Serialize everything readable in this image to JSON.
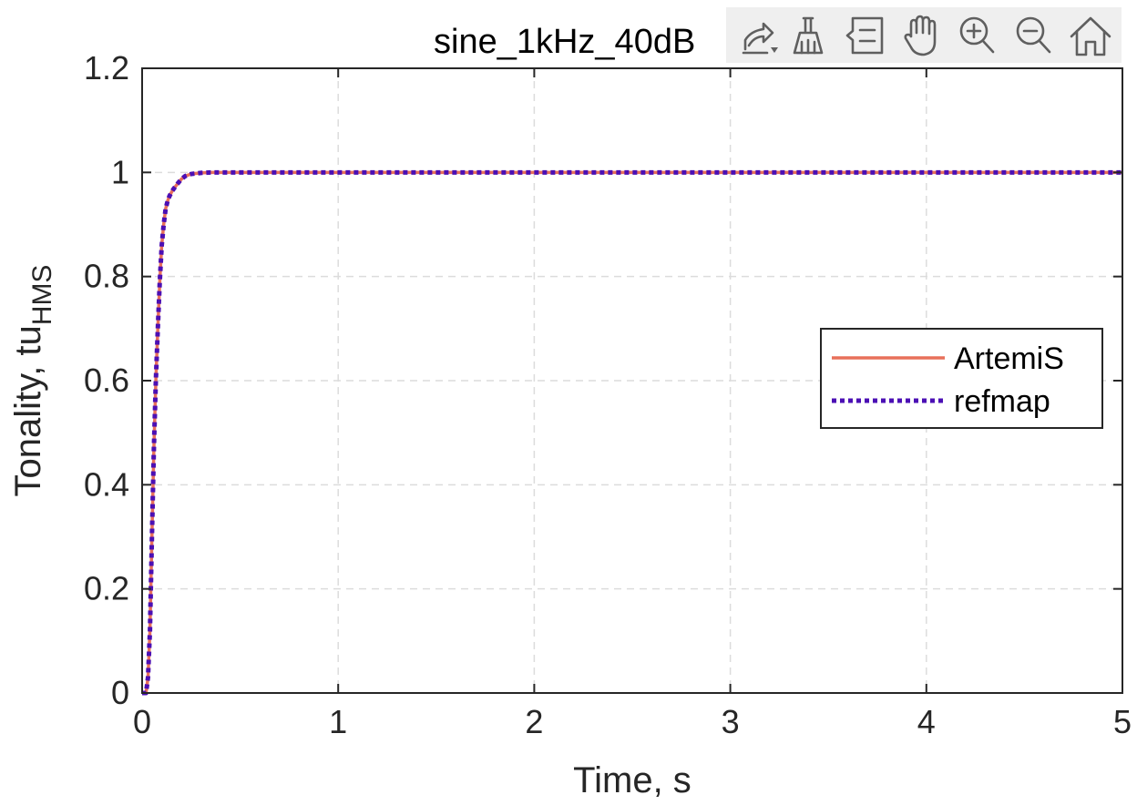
{
  "chart_data": {
    "type": "line",
    "title": "sine_1kHz_40dB",
    "xlabel": "Time, s",
    "ylabel_main": "Tonality, tu",
    "ylabel_subscript": "HMS",
    "xlim": [
      0,
      5
    ],
    "ylim": [
      0,
      1.2
    ],
    "xticks": [
      0,
      1,
      2,
      3,
      4,
      5
    ],
    "xtick_labels": [
      "0",
      "1",
      "2",
      "3",
      "4",
      "5"
    ],
    "yticks": [
      0,
      0.2,
      0.4,
      0.6,
      0.8,
      1,
      1.2
    ],
    "ytick_labels": [
      "0",
      "0.2",
      "0.4",
      "0.6",
      "0.8",
      "1",
      "1.2"
    ],
    "grid": true,
    "legend_position": "right",
    "series": [
      {
        "name": "ArtemiS",
        "color": "#E8705A",
        "style": "solid",
        "x": [
          0,
          0.02,
          0.03,
          0.04,
          0.05,
          0.06,
          0.07,
          0.08,
          0.09,
          0.1,
          0.11,
          0.12,
          0.13,
          0.14,
          0.15,
          0.16,
          0.18,
          0.2,
          0.22,
          0.25,
          0.3,
          0.35,
          0.5,
          1,
          2,
          3,
          4,
          5
        ],
        "y": [
          0,
          0.0,
          0.03,
          0.12,
          0.3,
          0.47,
          0.6,
          0.7,
          0.79,
          0.86,
          0.9,
          0.93,
          0.945,
          0.955,
          0.962,
          0.968,
          0.978,
          0.987,
          0.993,
          0.997,
          0.999,
          1.0,
          1.0,
          1.0,
          1.0,
          1.0,
          1.0,
          1.0
        ]
      },
      {
        "name": "refmap",
        "color": "#4B0FB4",
        "style": "dotted",
        "x": [
          0,
          0.02,
          0.03,
          0.04,
          0.05,
          0.06,
          0.07,
          0.08,
          0.09,
          0.1,
          0.11,
          0.12,
          0.13,
          0.14,
          0.15,
          0.16,
          0.18,
          0.2,
          0.22,
          0.25,
          0.3,
          0.35,
          0.5,
          1,
          2,
          3,
          4,
          5
        ],
        "y": [
          0,
          0.0,
          0.03,
          0.12,
          0.3,
          0.47,
          0.6,
          0.7,
          0.79,
          0.86,
          0.9,
          0.93,
          0.945,
          0.955,
          0.962,
          0.968,
          0.978,
          0.987,
          0.993,
          0.997,
          0.999,
          1.0,
          1.0,
          1.0,
          1.0,
          1.0,
          1.0,
          1.0
        ]
      }
    ]
  },
  "toolbar": {
    "buttons": [
      {
        "icon": "export-icon"
      },
      {
        "icon": "brush-icon"
      },
      {
        "icon": "data-tips-icon"
      },
      {
        "icon": "pan-hand-icon"
      },
      {
        "icon": "zoom-in-icon"
      },
      {
        "icon": "zoom-out-icon"
      },
      {
        "icon": "home-icon"
      }
    ]
  }
}
